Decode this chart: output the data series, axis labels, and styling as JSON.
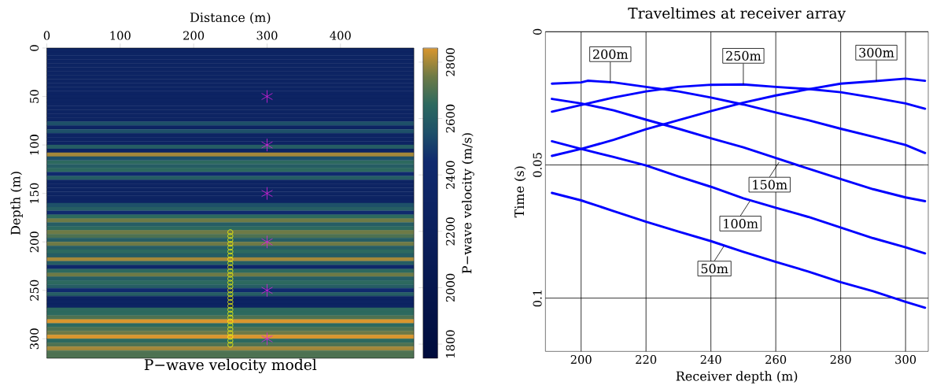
{
  "chart_data": [
    {
      "type": "heatmap",
      "title": "P−wave velocity model",
      "xlabel": "Distance (m)",
      "ylabel": "Depth (m)",
      "clabel": "P−wave velocity (m/s)",
      "xlim": [
        0,
        500
      ],
      "ylim": [
        320,
        0
      ],
      "xticks": [
        0,
        100,
        200,
        300,
        400
      ],
      "yticks": [
        0,
        50,
        100,
        150,
        200,
        250,
        300
      ],
      "clim": [
        1750,
        2850
      ],
      "cticks": [
        1800,
        2000,
        2200,
        2400,
        2600,
        2800
      ],
      "cells": [
        [
          2300
        ],
        [
          2300
        ],
        [
          2300
        ],
        [
          2300
        ],
        [
          2300
        ],
        [
          2300
        ],
        [
          2300
        ],
        [
          2300
        ],
        [
          2300
        ],
        [
          2300
        ],
        [
          2300
        ],
        [
          2300
        ],
        [
          2300
        ],
        [
          2300
        ],
        [
          2300
        ],
        [
          2300
        ],
        [
          2300
        ],
        [
          2300
        ],
        [
          2300
        ],
        [
          2550
        ],
        [
          2300
        ],
        [
          2550
        ],
        [
          2300
        ],
        [
          2300
        ],
        [
          2300
        ],
        [
          2600
        ],
        [
          2300
        ],
        [
          2800
        ],
        [
          2550
        ],
        [
          2650
        ],
        [
          2600
        ],
        [
          2650
        ],
        [
          2450
        ],
        [
          2600
        ],
        [
          2300
        ],
        [
          2300
        ],
        [
          2300
        ],
        [
          2300
        ],
        [
          2300
        ],
        [
          2300
        ],
        [
          2550
        ],
        [
          2600
        ],
        [
          2450
        ],
        [
          2650
        ],
        [
          2750
        ],
        [
          2600
        ],
        [
          2650
        ],
        [
          2750
        ],
        [
          2700
        ],
        [
          2600
        ],
        [
          2750
        ],
        [
          2600
        ],
        [
          2650
        ],
        [
          2600
        ],
        [
          2800
        ],
        [
          2600
        ],
        [
          2400
        ],
        [
          2650
        ],
        [
          2750
        ],
        [
          2600
        ],
        [
          2650
        ],
        [
          2600
        ],
        [
          2450
        ],
        [
          2600
        ],
        [
          2300
        ],
        [
          2300
        ],
        [
          2300
        ],
        [
          2650
        ],
        [
          2650
        ],
        [
          2700
        ],
        [
          2850
        ],
        [
          2650
        ],
        [
          2700
        ],
        [
          2750
        ],
        [
          2850
        ],
        [
          2650
        ],
        [
          2700
        ],
        [
          2800
        ],
        [
          2700
        ],
        [
          2700
        ]
      ],
      "series": [
        {
          "type": "scatter",
          "marker": "cross",
          "color": "#e020e0",
          "x": [
            300,
            300,
            300,
            300,
            300,
            300
          ],
          "values": [
            50,
            100,
            150,
            200,
            250,
            300
          ]
        },
        {
          "type": "scatter",
          "marker": "circle",
          "color": "#ffff00",
          "x": [
            250,
            250,
            250,
            250,
            250,
            250,
            250,
            250,
            250,
            250,
            250,
            250,
            250,
            250,
            250,
            250,
            250,
            250,
            250,
            250,
            250,
            250,
            250,
            250,
            250,
            250,
            250,
            250,
            250,
            250
          ],
          "values": [
            190,
            194,
            198,
            202,
            206,
            210,
            214,
            218,
            222,
            226,
            230,
            234,
            238,
            242,
            246,
            250,
            254,
            258,
            262,
            266,
            270,
            274,
            278,
            282,
            286,
            290,
            294,
            298,
            302,
            306
          ]
        }
      ]
    },
    {
      "type": "line",
      "title": "Traveltimes at receiver array",
      "xlabel": "Receiver depth (m)",
      "ylabel": "Time (s)",
      "xlim": [
        189,
        307
      ],
      "ylim": [
        0.12,
        0
      ],
      "xticks": [
        200,
        220,
        240,
        260,
        280,
        300
      ],
      "yticks": [
        0,
        0.05,
        0.1
      ],
      "grid": true,
      "series": [
        {
          "color": "#0000ff",
          "x": [
            191,
            200,
            202,
            210,
            220,
            230,
            240,
            250,
            260,
            270,
            280,
            290,
            300,
            306
          ],
          "values": [
            0.0195,
            0.019,
            0.0184,
            0.019,
            0.0207,
            0.0224,
            0.0247,
            0.0273,
            0.0303,
            0.0332,
            0.0364,
            0.0394,
            0.0425,
            0.0455
          ]
        },
        {
          "color": "#0000ff",
          "x": [
            191,
            200,
            210,
            220,
            230,
            240,
            250,
            260,
            270,
            280,
            290,
            300,
            306
          ],
          "values": [
            0.03,
            0.0275,
            0.0247,
            0.0224,
            0.0207,
            0.0199,
            0.0198,
            0.0207,
            0.0215,
            0.0227,
            0.0247,
            0.0269,
            0.0289
          ]
        },
        {
          "color": "#0000ff",
          "x": [
            191,
            200,
            210,
            220,
            230,
            240,
            250,
            260,
            270,
            280,
            290,
            300,
            306
          ],
          "values": [
            0.0466,
            0.044,
            0.0406,
            0.0366,
            0.0332,
            0.0298,
            0.0266,
            0.0239,
            0.0216,
            0.0195,
            0.0186,
            0.0176,
            0.0184
          ]
        },
        {
          "color": "#0000ff",
          "x": [
            191,
            200,
            210,
            220,
            230,
            240,
            250,
            260,
            270,
            280,
            290,
            300,
            306
          ],
          "values": [
            0.0252,
            0.0269,
            0.0295,
            0.033,
            0.0364,
            0.04,
            0.0434,
            0.0474,
            0.0514,
            0.0553,
            0.0591,
            0.0622,
            0.0636
          ]
        },
        {
          "color": "#0000ff",
          "x": [
            191,
            200,
            210,
            220,
            230,
            240,
            250,
            260,
            270,
            280,
            290,
            300,
            306
          ],
          "values": [
            0.0411,
            0.044,
            0.047,
            0.0502,
            0.0543,
            0.0582,
            0.0625,
            0.0661,
            0.0695,
            0.0735,
            0.0775,
            0.0809,
            0.0832
          ]
        },
        {
          "color": "#0000ff",
          "x": [
            191,
            200,
            210,
            220,
            230,
            240,
            250,
            260,
            270,
            280,
            290,
            300,
            306
          ],
          "values": [
            0.0605,
            0.0633,
            0.0673,
            0.0713,
            0.075,
            0.0786,
            0.0826,
            0.0864,
            0.09,
            0.094,
            0.0974,
            0.1014,
            0.1036
          ]
        }
      ],
      "annotations": [
        {
          "text": "200m",
          "x": 209,
          "y": 0.0192
        },
        {
          "text": "250m",
          "x": 250,
          "y": 0.0198
        },
        {
          "text": "300m",
          "x": 291,
          "y": 0.0186
        },
        {
          "text": "150m",
          "x": 261,
          "y": 0.049
        },
        {
          "text": "100m",
          "x": 252,
          "y": 0.0636
        },
        {
          "text": "50m",
          "x": 244,
          "y": 0.0805
        }
      ]
    }
  ]
}
